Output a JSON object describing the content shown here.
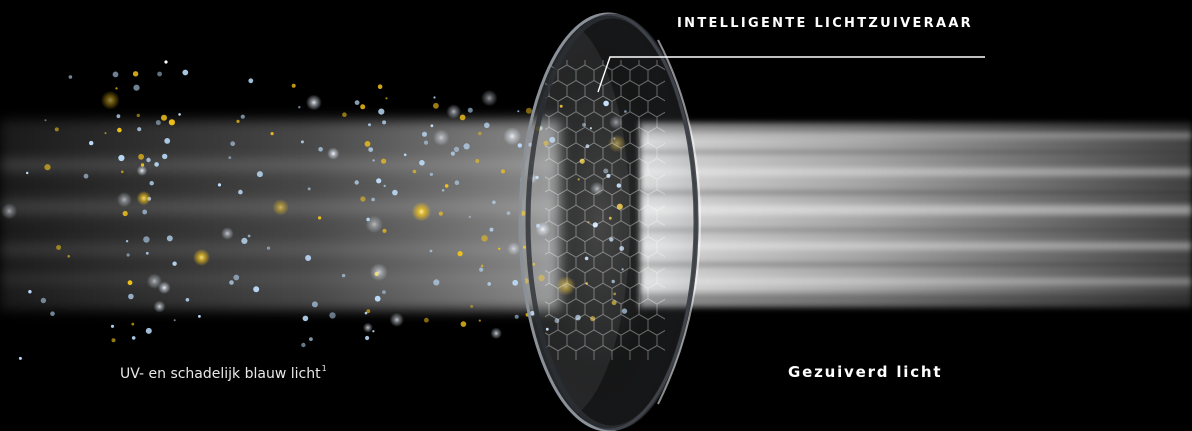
{
  "labels": {
    "filter_title": "INTELLIGENTE LICHTZUIVERAAR",
    "incoming_light": "UV- en schadelijk blauw licht",
    "incoming_footnote": "1",
    "purified_light": "Gezuiverd licht"
  },
  "colors": {
    "background": "#000000",
    "text": "#ffffff",
    "particle_gold": "#f2c21a",
    "particle_blue": "#bfe0ff",
    "callout_line": "#ffffff"
  }
}
